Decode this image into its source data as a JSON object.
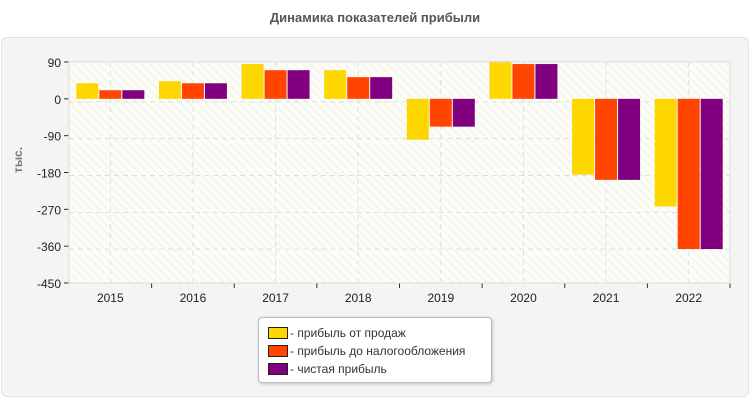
{
  "chart_data": {
    "type": "bar",
    "title": "Динамика показателей прибыли",
    "ylabel": "тыс.",
    "xlabel": "",
    "ylim": [
      -450,
      90
    ],
    "yticks": [
      90,
      0,
      -90,
      -180,
      -270,
      -360,
      -450
    ],
    "categories": [
      "2015",
      "2016",
      "2017",
      "2018",
      "2019",
      "2020",
      "2021",
      "2022"
    ],
    "series": [
      {
        "name": "- прибыль от продаж",
        "color": "#FFD700",
        "values": [
          38,
          43,
          85,
          70,
          -100,
          92,
          -185,
          -263
        ]
      },
      {
        "name": "- прибыль до налогообложения",
        "color": "#FF4500",
        "values": [
          21,
          38,
          70,
          53,
          -68,
          85,
          -198,
          -367
        ]
      },
      {
        "name": "- чистая прибыль",
        "color": "#800080",
        "values": [
          21,
          38,
          70,
          53,
          -68,
          85,
          -198,
          -367
        ]
      }
    ],
    "grid": true,
    "legend_position": "bottom"
  }
}
